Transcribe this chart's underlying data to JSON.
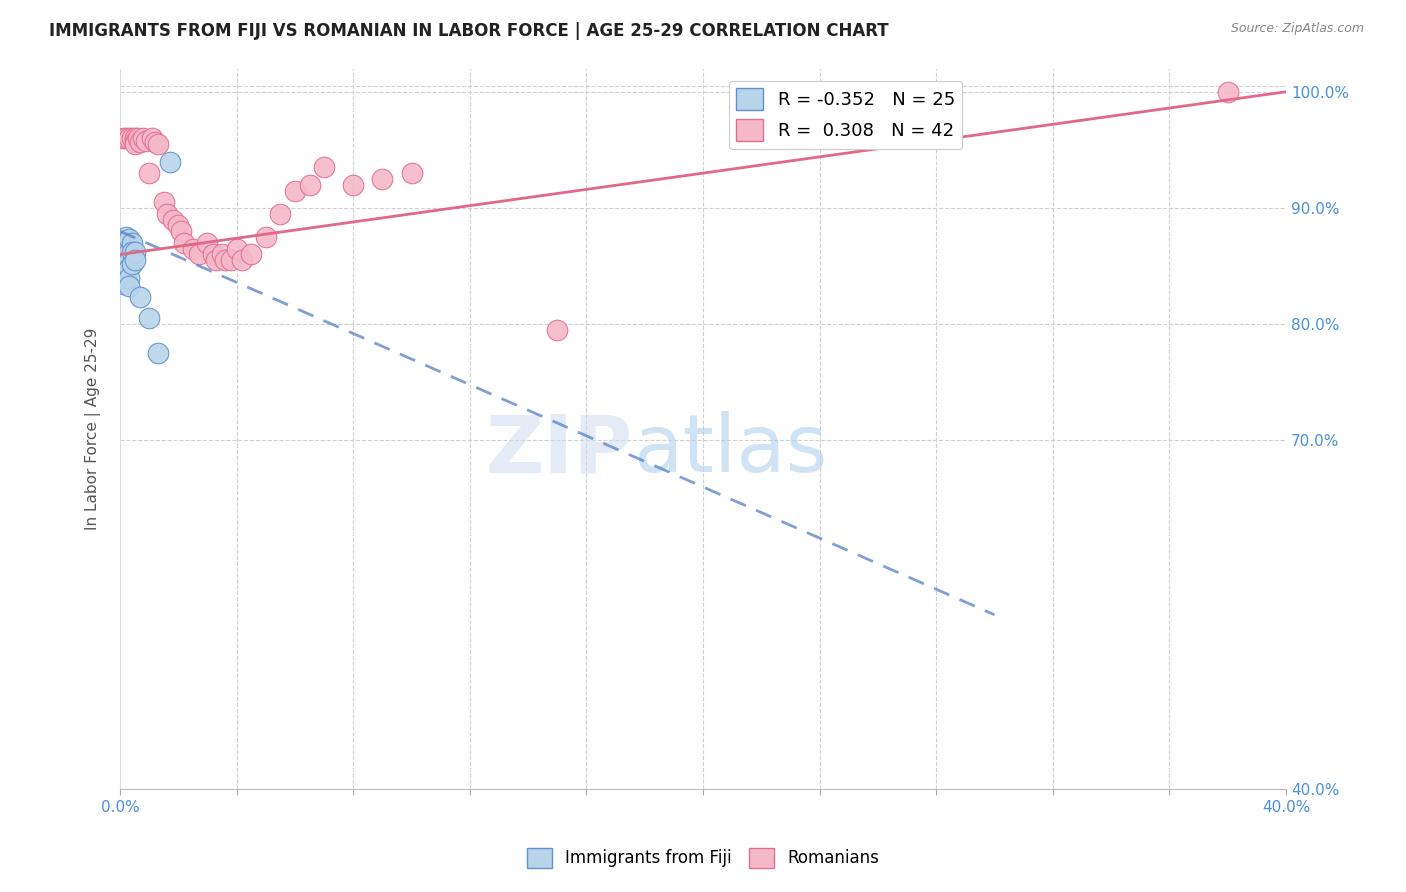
{
  "title": "IMMIGRANTS FROM FIJI VS ROMANIAN IN LABOR FORCE | AGE 25-29 CORRELATION CHART",
  "source": "Source: ZipAtlas.com",
  "ylabel": "In Labor Force | Age 25-29",
  "xlim": [
    0.0,
    0.4
  ],
  "ylim": [
    0.4,
    1.02
  ],
  "ytick_vals": [
    0.4,
    0.7,
    0.8,
    0.9,
    1.0
  ],
  "ytick_labels": [
    "40.0%",
    "70.0%",
    "80.0%",
    "90.0%",
    "100.0%"
  ],
  "xtick_labels": [
    "0.0%",
    "",
    "",
    "",
    "",
    "",
    "",
    "",
    "",
    "",
    "40.0%"
  ],
  "fiji_color": "#b8d4ea",
  "romanian_color": "#f5b8c8",
  "fiji_edge_color": "#6090cc",
  "romanian_edge_color": "#e07090",
  "fiji_line_color": "#5580c8",
  "romanian_line_color": "#e06888",
  "fiji_R": -0.352,
  "fiji_N": 25,
  "romanian_R": 0.308,
  "romanian_N": 42,
  "fiji_points_x": [
    0.001,
    0.001,
    0.001,
    0.001,
    0.002,
    0.002,
    0.002,
    0.002,
    0.002,
    0.002,
    0.003,
    0.003,
    0.003,
    0.003,
    0.003,
    0.003,
    0.004,
    0.004,
    0.004,
    0.005,
    0.005,
    0.007,
    0.01,
    0.013,
    0.017
  ],
  "fiji_points_y": [
    0.858,
    0.855,
    0.87,
    0.835,
    0.875,
    0.868,
    0.863,
    0.855,
    0.845,
    0.84,
    0.873,
    0.862,
    0.855,
    0.848,
    0.84,
    0.833,
    0.87,
    0.862,
    0.852,
    0.862,
    0.855,
    0.823,
    0.805,
    0.775,
    0.94
  ],
  "romanian_points_x": [
    0.001,
    0.002,
    0.003,
    0.004,
    0.005,
    0.005,
    0.005,
    0.006,
    0.007,
    0.008,
    0.009,
    0.01,
    0.011,
    0.012,
    0.013,
    0.015,
    0.016,
    0.018,
    0.02,
    0.021,
    0.022,
    0.025,
    0.027,
    0.03,
    0.032,
    0.033,
    0.035,
    0.036,
    0.038,
    0.04,
    0.042,
    0.045,
    0.05,
    0.055,
    0.06,
    0.065,
    0.07,
    0.08,
    0.09,
    0.1,
    0.15,
    0.38
  ],
  "romanian_points_y": [
    0.96,
    0.96,
    0.96,
    0.96,
    0.96,
    0.957,
    0.955,
    0.96,
    0.957,
    0.96,
    0.958,
    0.93,
    0.96,
    0.957,
    0.955,
    0.905,
    0.895,
    0.89,
    0.885,
    0.88,
    0.87,
    0.865,
    0.86,
    0.87,
    0.86,
    0.855,
    0.86,
    0.855,
    0.855,
    0.865,
    0.855,
    0.86,
    0.875,
    0.895,
    0.915,
    0.92,
    0.935,
    0.92,
    0.925,
    0.93,
    0.795,
    1.0
  ],
  "fiji_line_x0": 0.0,
  "fiji_line_y0": 0.88,
  "fiji_line_x1": 0.3,
  "fiji_line_y1": 0.55,
  "romanian_line_x0": 0.0,
  "romanian_line_y0": 0.86,
  "romanian_line_x1": 0.4,
  "romanian_line_y1": 1.0
}
